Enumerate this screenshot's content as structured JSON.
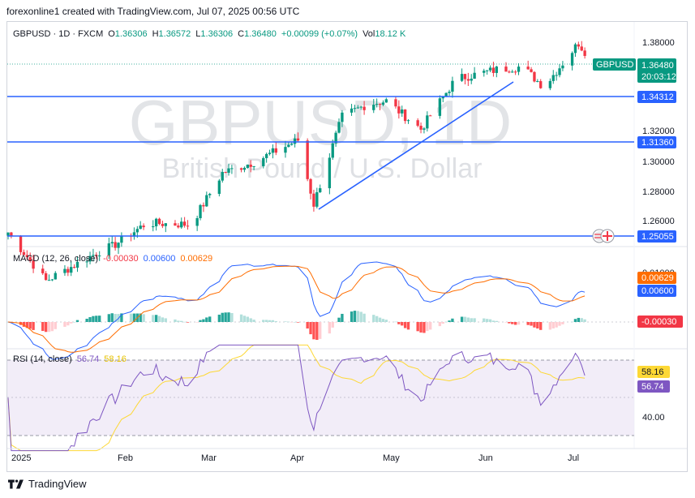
{
  "header": {
    "attribution": "forexonline1 created with TradingView.com, Jul 07, 2025 00:56 UTC"
  },
  "legend": {
    "symbol": "GBPUSD · 1D · FXCM",
    "open_label": "O",
    "open": "1.36306",
    "high_label": "H",
    "high": "1.36572",
    "low_label": "L",
    "low": "1.36306",
    "close_label": "C",
    "close": "1.36480",
    "change": "+0.00099 (+0.07%)",
    "vol_label": "Vol",
    "vol": "18.12 K"
  },
  "watermark": {
    "symbol": "GBPUSD, 1D",
    "name": "British Pound / U.S. Dollar"
  },
  "price_scale": {
    "ticks": [
      "1.38000",
      "1.32000",
      "1.30000",
      "1.28000",
      "1.26000"
    ]
  },
  "price_labels": {
    "symbol_tag": "GBPUSD",
    "last": "1.36480",
    "countdown": "20:03:12",
    "lines": [
      "1.34312",
      "1.31360",
      "1.25055"
    ]
  },
  "macd": {
    "legend_name": "MACD (12, 26, close)",
    "hist": "-0.00030",
    "macd": "0.00600",
    "signal": "0.00629",
    "scale_partial": "0.01000",
    "labels": {
      "signal": "0.00629",
      "macd": "0.00600",
      "hist": "-0.00030"
    }
  },
  "rsi": {
    "legend_name": "RSI (14, close)",
    "value": "56.74",
    "ma": "58.16",
    "scale": [
      "40.00"
    ],
    "labels": {
      "ma": "58.16",
      "rsi": "56.74"
    }
  },
  "time_axis": {
    "labels": [
      "2025",
      "Feb",
      "Mar",
      "Apr",
      "May",
      "Jun",
      "Jul"
    ]
  },
  "footer": {
    "brand": "TradingView"
  },
  "colors": {
    "up": "#089981",
    "down": "#f23645",
    "blue_line": "#2962ff",
    "macd_line": "#2962ff",
    "signal_line": "#ff6d00",
    "rsi_line": "#7e57c2",
    "rsi_ma": "#fdd835",
    "rsi_band": "#ede7f6"
  },
  "chart_data": {
    "type": "candlestick",
    "ylim": [
      1.245,
      1.385
    ],
    "horizontal_levels": [
      1.34312,
      1.3136,
      1.25055
    ],
    "trendline": {
      "from": [
        "Apr 07",
        1.2685
      ],
      "to": [
        "Jun 17",
        1.358
      ]
    },
    "anchors": [
      {
        "t": "Jan 01",
        "close": 1.252
      },
      {
        "t": "Jan 13",
        "close": 1.221
      },
      {
        "t": "Jan 31",
        "close": 1.241
      },
      {
        "t": "Feb 03",
        "close": 1.243
      },
      {
        "t": "Feb 14",
        "close": 1.258
      },
      {
        "t": "Feb 28",
        "close": 1.257
      },
      {
        "t": "Mar 10",
        "close": 1.29
      },
      {
        "t": "Mar 20",
        "close": 1.297
      },
      {
        "t": "Apr 03",
        "close": 1.311
      },
      {
        "t": "Apr 08",
        "close": 1.27
      },
      {
        "t": "Apr 17",
        "close": 1.326
      },
      {
        "t": "Apr 25",
        "close": 1.334
      },
      {
        "t": "May 01",
        "close": 1.336
      },
      {
        "t": "May 12",
        "close": 1.318
      },
      {
        "t": "May 23",
        "close": 1.35
      },
      {
        "t": "Jun 05",
        "close": 1.356
      },
      {
        "t": "Jun 13",
        "close": 1.358
      },
      {
        "t": "Jun 20",
        "close": 1.345
      },
      {
        "t": "Jul 01",
        "close": 1.373
      },
      {
        "t": "Jul 04",
        "close": 1.3648
      }
    ],
    "macd": {
      "macd": 0.006,
      "signal": 0.00629,
      "histogram": -0.0003
    },
    "rsi": {
      "rsi": 56.74,
      "ma": 58.16
    }
  }
}
